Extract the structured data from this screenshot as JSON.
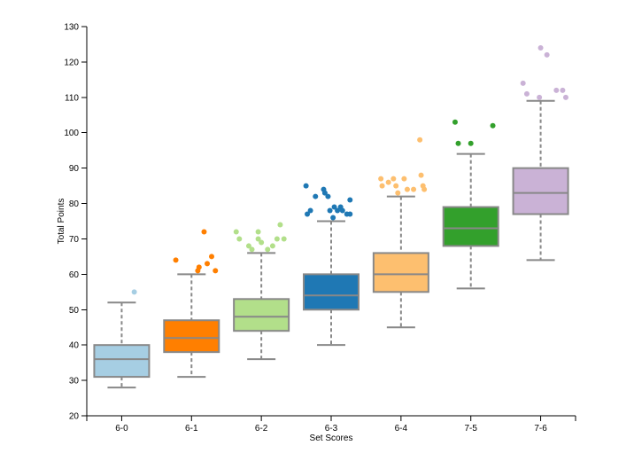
{
  "chart_data": {
    "type": "box",
    "xlabel": "Set Scores",
    "ylabel": "Total Points",
    "ylim": [
      20,
      130
    ],
    "yticks": [
      20,
      30,
      40,
      50,
      60,
      70,
      80,
      90,
      100,
      110,
      120,
      130
    ],
    "grid": false,
    "categories": [
      "6-0",
      "6-1",
      "6-2",
      "6-3",
      "6-4",
      "7-5",
      "7-6"
    ],
    "boxes": [
      {
        "category": "6-0",
        "color": "#a6cee3",
        "whisker_low": 28,
        "q1": 31,
        "median": 36,
        "q3": 40,
        "whisker_high": 52,
        "outliers": [
          [
            0.2,
            55
          ]
        ]
      },
      {
        "category": "6-1",
        "color": "#ff7f00",
        "whisker_low": 31,
        "q1": 38,
        "median": 42,
        "q3": 47,
        "whisker_high": 60,
        "outliers": [
          [
            -0.25,
            64
          ],
          [
            0.2,
            72
          ],
          [
            0.12,
            62
          ],
          [
            0.1,
            61
          ],
          [
            0.25,
            63
          ],
          [
            0.32,
            65
          ],
          [
            0.38,
            61
          ]
        ]
      },
      {
        "category": "6-2",
        "color": "#b2df8a",
        "whisker_low": 36,
        "q1": 44,
        "median": 48,
        "q3": 53,
        "whisker_high": 66,
        "outliers": [
          [
            -0.4,
            72
          ],
          [
            -0.35,
            70
          ],
          [
            -0.2,
            68
          ],
          [
            -0.15,
            67
          ],
          [
            -0.05,
            72
          ],
          [
            -0.05,
            70
          ],
          [
            0.0,
            69
          ],
          [
            0.1,
            67
          ],
          [
            0.18,
            68
          ],
          [
            0.25,
            70
          ],
          [
            0.3,
            74
          ],
          [
            0.36,
            70
          ]
        ]
      },
      {
        "category": "6-3",
        "color": "#1f78b4",
        "whisker_low": 40,
        "q1": 50,
        "median": 54,
        "q3": 60,
        "whisker_high": 75,
        "outliers": [
          [
            -0.4,
            85
          ],
          [
            -0.38,
            77
          ],
          [
            -0.33,
            78
          ],
          [
            -0.25,
            82
          ],
          [
            -0.12,
            84
          ],
          [
            -0.1,
            83
          ],
          [
            -0.05,
            82
          ],
          [
            -0.02,
            78
          ],
          [
            0.03,
            76
          ],
          [
            0.05,
            79
          ],
          [
            0.1,
            78
          ],
          [
            0.15,
            79
          ],
          [
            0.18,
            78
          ],
          [
            0.25,
            77
          ],
          [
            0.3,
            77
          ],
          [
            0.3,
            81
          ]
        ]
      },
      {
        "category": "6-4",
        "color": "#fdbf6f",
        "whisker_low": 45,
        "q1": 55,
        "median": 60,
        "q3": 66,
        "whisker_high": 82,
        "outliers": [
          [
            -0.32,
            87
          ],
          [
            -0.3,
            85
          ],
          [
            -0.2,
            86
          ],
          [
            -0.12,
            87
          ],
          [
            -0.08,
            85
          ],
          [
            -0.05,
            83
          ],
          [
            0.05,
            87
          ],
          [
            0.1,
            84
          ],
          [
            0.2,
            84
          ],
          [
            0.3,
            98
          ],
          [
            0.32,
            88
          ],
          [
            0.35,
            85
          ],
          [
            0.37,
            84
          ]
        ]
      },
      {
        "category": "7-5",
        "color": "#33a02c",
        "whisker_low": 56,
        "q1": 68,
        "median": 73,
        "q3": 79,
        "whisker_high": 94,
        "outliers": [
          [
            -0.25,
            103
          ],
          [
            -0.2,
            97
          ],
          [
            0.0,
            97
          ],
          [
            0.35,
            102
          ]
        ]
      },
      {
        "category": "7-6",
        "color": "#cab2d6",
        "whisker_low": 64,
        "q1": 77,
        "median": 83,
        "q3": 90,
        "whisker_high": 109,
        "outliers": [
          [
            -0.28,
            114
          ],
          [
            -0.22,
            111
          ],
          [
            -0.02,
            110
          ],
          [
            0.0,
            124
          ],
          [
            0.1,
            122
          ],
          [
            0.25,
            112
          ],
          [
            0.35,
            112
          ],
          [
            0.4,
            110
          ]
        ]
      }
    ]
  }
}
